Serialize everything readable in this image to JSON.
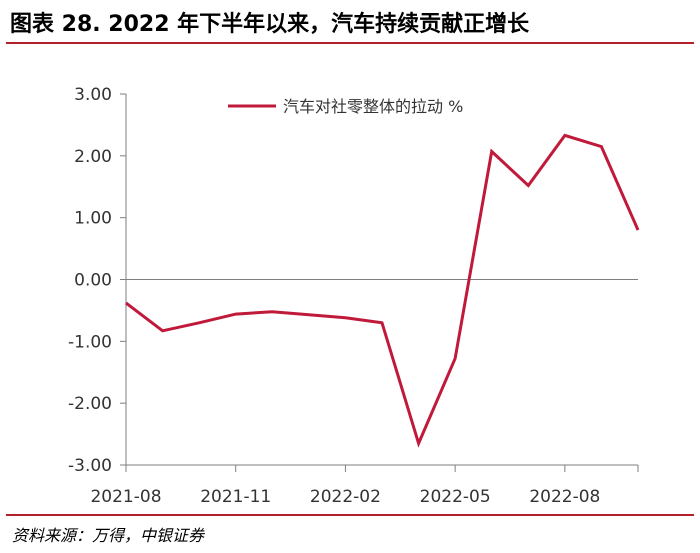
{
  "figure": {
    "title": "图表 28. 2022 年下半年以来，汽车持续贡献正增长",
    "source": "资料来源：万得，中银证券"
  },
  "colors": {
    "accent": "#b21f2d",
    "series_line": "#c0193a",
    "axis": "#7f7f7f"
  },
  "chart_data": {
    "type": "line",
    "x": [
      "2021-08",
      "2021-09",
      "2021-10",
      "2021-11",
      "2021-12",
      "2022-01",
      "2022-02",
      "2022-03",
      "2022-04",
      "2022-05",
      "2022-06",
      "2022-07",
      "2022-08",
      "2022-09",
      "2022-10"
    ],
    "x_tick_labels": [
      "2021-08",
      "2021-11",
      "2022-02",
      "2022-05",
      "2022-08"
    ],
    "series": [
      {
        "name": "汽车对社零整体的拉动 %",
        "values": [
          -0.38,
          -0.83,
          -0.7,
          -0.56,
          -0.52,
          -0.57,
          -0.62,
          -0.7,
          -2.65,
          -1.28,
          2.07,
          1.52,
          2.33,
          2.15,
          0.8
        ]
      }
    ],
    "y_ticks": [
      "3.00",
      "2.00",
      "1.00",
      "0.00",
      "-1.00",
      "-2.00",
      "-3.00"
    ],
    "ylim": [
      -3,
      3
    ],
    "grid": false,
    "legend_position": "top-right"
  }
}
